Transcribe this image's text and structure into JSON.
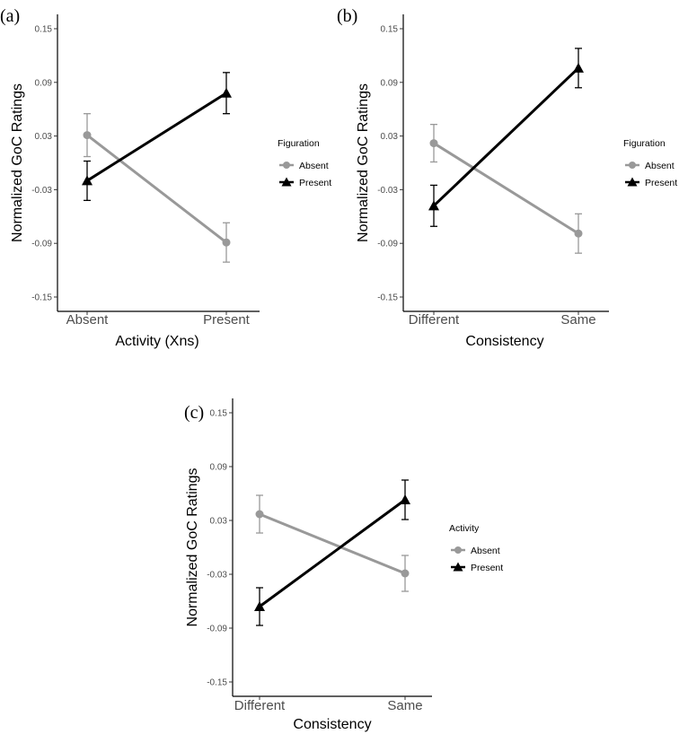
{
  "chart_data": [
    {
      "type": "line",
      "panel_label": "(a)",
      "xlabel": "Activity (Xns)",
      "ylabel": "Normalized GoC Ratings",
      "categories": [
        "Absent",
        "Present"
      ],
      "yticks": [
        "0.15",
        "0.09",
        "0.03",
        "-0.03",
        "-0.09",
        "-0.15"
      ],
      "ylim": [
        -0.15,
        0.15
      ],
      "legend_title": "Figuration",
      "series": [
        {
          "name": "Absent",
          "color": "#999999",
          "marker": "circle",
          "values": [
            0.031,
            -0.089
          ],
          "errors": [
            0.024,
            0.022
          ]
        },
        {
          "name": "Present",
          "color": "#000000",
          "marker": "triangle",
          "values": [
            -0.02,
            0.078
          ],
          "errors": [
            0.022,
            0.023
          ]
        }
      ]
    },
    {
      "type": "line",
      "panel_label": "(b)",
      "xlabel": "Consistency",
      "ylabel": "Normalized GoC Ratings",
      "categories": [
        "Different",
        "Same"
      ],
      "yticks": [
        "0.15",
        "0.09",
        "0.03",
        "-0.03",
        "-0.09",
        "-0.15"
      ],
      "ylim": [
        -0.15,
        0.15
      ],
      "legend_title": "Figuration",
      "series": [
        {
          "name": "Absent",
          "color": "#999999",
          "marker": "circle",
          "values": [
            0.022,
            -0.079
          ],
          "errors": [
            0.021,
            0.022
          ]
        },
        {
          "name": "Present",
          "color": "#000000",
          "marker": "triangle",
          "values": [
            -0.048,
            0.106
          ],
          "errors": [
            0.023,
            0.022
          ]
        }
      ]
    },
    {
      "type": "line",
      "panel_label": "(c)",
      "xlabel": "Consistency",
      "ylabel": "Normalized GoC Ratings",
      "categories": [
        "Different",
        "Same"
      ],
      "yticks": [
        "0.15",
        "0.09",
        "0.03",
        "-0.03",
        "-0.09",
        "-0.15"
      ],
      "ylim": [
        -0.15,
        0.15
      ],
      "legend_title": "Activity",
      "series": [
        {
          "name": "Absent",
          "color": "#999999",
          "marker": "circle",
          "values": [
            0.037,
            -0.029
          ],
          "errors": [
            0.021,
            0.02
          ]
        },
        {
          "name": "Present",
          "color": "#000000",
          "marker": "triangle",
          "values": [
            -0.066,
            0.053
          ],
          "errors": [
            0.021,
            0.022
          ]
        }
      ]
    }
  ]
}
